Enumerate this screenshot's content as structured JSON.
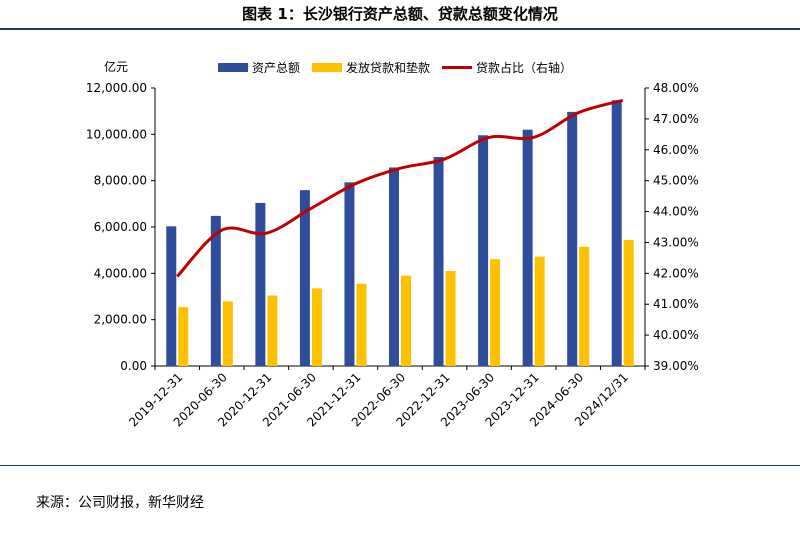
{
  "title": "图表 1：长沙银行资产总额、贷款总额变化情况",
  "source": "来源：公司财报，新华财经",
  "chart_data": {
    "type": "bar",
    "unit_left": "亿元",
    "categories": [
      "2019-12-31",
      "2020-06-30",
      "2020-12-31",
      "2021-06-30",
      "2021-12-31",
      "2022-06-30",
      "2022-12-31",
      "2023-06-30",
      "2023-12-31",
      "2024-06-30",
      "2024/12/31"
    ],
    "series": [
      {
        "name": "资产总额",
        "axis": "left",
        "kind": "bar",
        "color": "#2e4d9a",
        "values": [
          6030,
          6480,
          7040,
          7590,
          7930,
          8570,
          9020,
          9960,
          10200,
          10970,
          11470
        ]
      },
      {
        "name": "发放贷款和垫款",
        "axis": "left",
        "kind": "bar",
        "color": "#ffc000",
        "values": [
          2540,
          2790,
          3040,
          3350,
          3550,
          3900,
          4100,
          4610,
          4720,
          5150,
          5440
        ]
      },
      {
        "name": "贷款占比（右轴）",
        "axis": "right",
        "kind": "line",
        "color": "#c00000",
        "values": [
          41.9,
          43.4,
          43.3,
          44.1,
          44.9,
          45.4,
          45.7,
          46.4,
          46.4,
          47.2,
          47.6
        ]
      }
    ],
    "y_left": {
      "min": 0,
      "max": 12000,
      "step": 2000,
      "ticks": [
        "0.00",
        "2,000.00",
        "4,000.00",
        "6,000.00",
        "8,000.00",
        "10,000.00",
        "12,000.00"
      ]
    },
    "y_right": {
      "min": 39,
      "max": 48,
      "step": 1,
      "ticks": [
        "39.00%",
        "40.00%",
        "41.00%",
        "42.00%",
        "43.00%",
        "44.00%",
        "45.00%",
        "46.00%",
        "47.00%",
        "48.00%"
      ]
    },
    "legend_position": "top-center",
    "grid": false
  }
}
